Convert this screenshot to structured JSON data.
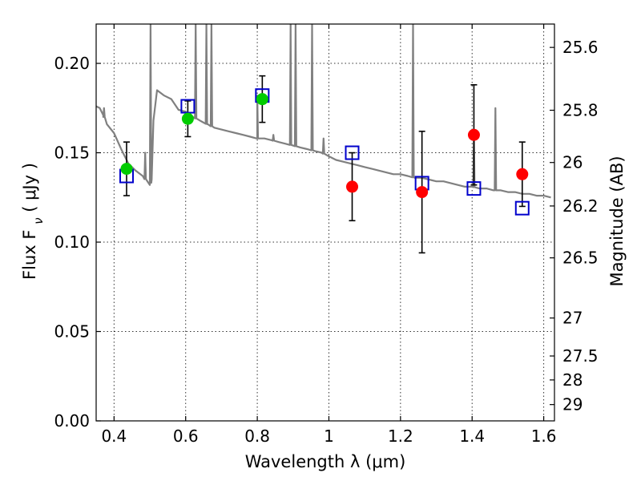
{
  "chart_data": {
    "type": "scatter",
    "xlabel": "Wavelength  λ (μm)",
    "ylabel": "Flux  F_ν  ( μJy )",
    "ylabel_right": "Magnitude (AB)",
    "xlim": [
      0.35,
      1.63
    ],
    "ylim": [
      0.0,
      0.222
    ],
    "grid": true,
    "x_ticks": [
      0.4,
      0.6,
      0.8,
      1.0,
      1.2,
      1.4,
      1.6
    ],
    "x_tick_labels": [
      "0.4",
      "0.6",
      "0.8",
      "1",
      "1.2",
      "1.4",
      "1.6"
    ],
    "y_ticks": [
      0.0,
      0.05,
      0.1,
      0.15,
      0.2
    ],
    "y_tick_labels": [
      "0.00",
      "0.05",
      "0.10",
      "0.15",
      "0.20"
    ],
    "right_ticks": [
      {
        "mag": 25.6,
        "label": "25.6"
      },
      {
        "mag": 25.8,
        "label": "25.8"
      },
      {
        "mag": 26.0,
        "label": "26"
      },
      {
        "mag": 26.2,
        "label": "26.2"
      },
      {
        "mag": 26.5,
        "label": "26.5"
      },
      {
        "mag": 27.0,
        "label": "27"
      },
      {
        "mag": 27.5,
        "label": "27.5"
      },
      {
        "mag": 28.0,
        "label": "28"
      },
      {
        "mag": 29.0,
        "label": "29"
      }
    ],
    "colors": {
      "model": "#808080",
      "optical": "#00cc00",
      "nir": "#ff0000",
      "model_box": "#0000cc",
      "error": "#000000"
    },
    "model_spectrum": {
      "x": [
        0.35,
        0.36,
        0.37,
        0.38,
        0.4,
        0.42,
        0.44,
        0.46,
        0.48,
        0.5,
        0.505,
        0.51,
        0.52,
        0.54,
        0.56,
        0.58,
        0.6,
        0.62,
        0.64,
        0.66,
        0.68,
        0.7,
        0.72,
        0.74,
        0.76,
        0.78,
        0.8,
        0.82,
        0.84,
        0.86,
        0.88,
        0.9,
        0.92,
        0.94,
        0.96,
        0.98,
        1.0,
        1.02,
        1.04,
        1.06,
        1.08,
        1.1,
        1.12,
        1.14,
        1.16,
        1.18,
        1.2,
        1.22,
        1.24,
        1.26,
        1.28,
        1.3,
        1.32,
        1.34,
        1.36,
        1.38,
        1.4,
        1.42,
        1.44,
        1.46,
        1.48,
        1.5,
        1.52,
        1.54,
        1.56,
        1.58,
        1.6,
        1.62
      ],
      "y": [
        0.176,
        0.175,
        0.171,
        0.166,
        0.161,
        0.152,
        0.144,
        0.14,
        0.137,
        0.132,
        0.135,
        0.168,
        0.185,
        0.182,
        0.18,
        0.174,
        0.173,
        0.17,
        0.168,
        0.166,
        0.164,
        0.163,
        0.162,
        0.161,
        0.16,
        0.159,
        0.158,
        0.158,
        0.157,
        0.156,
        0.155,
        0.154,
        0.153,
        0.152,
        0.151,
        0.15,
        0.148,
        0.146,
        0.145,
        0.144,
        0.143,
        0.142,
        0.141,
        0.14,
        0.139,
        0.138,
        0.138,
        0.137,
        0.136,
        0.136,
        0.135,
        0.134,
        0.134,
        0.133,
        0.132,
        0.131,
        0.131,
        0.13,
        0.13,
        0.129,
        0.129,
        0.128,
        0.128,
        0.127,
        0.127,
        0.126,
        0.126,
        0.125
      ],
      "emission_lines": [
        {
          "x": 0.372,
          "y": 0.175
        },
        {
          "x": 0.487,
          "y": 0.15
        },
        {
          "x": 0.502,
          "y": 0.222
        },
        {
          "x": 0.628,
          "y": 0.222
        },
        {
          "x": 0.658,
          "y": 0.222
        },
        {
          "x": 0.672,
          "y": 0.222
        },
        {
          "x": 0.8,
          "y": 0.182
        },
        {
          "x": 0.845,
          "y": 0.16
        },
        {
          "x": 0.893,
          "y": 0.222
        },
        {
          "x": 0.907,
          "y": 0.222
        },
        {
          "x": 0.953,
          "y": 0.222
        },
        {
          "x": 0.985,
          "y": 0.158
        },
        {
          "x": 1.235,
          "y": 0.222
        },
        {
          "x": 1.405,
          "y": 0.162
        },
        {
          "x": 1.465,
          "y": 0.175
        }
      ]
    },
    "series": [
      {
        "kind": "optical",
        "points": [
          {
            "x": 0.435,
            "y": 0.141,
            "yerr": 0.015
          },
          {
            "x": 0.606,
            "y": 0.169,
            "yerr": 0.01
          },
          {
            "x": 0.814,
            "y": 0.18,
            "yerr": 0.013
          }
        ]
      },
      {
        "kind": "nir",
        "points": [
          {
            "x": 1.065,
            "y": 0.131,
            "yerr": 0.019
          },
          {
            "x": 1.26,
            "y": 0.128,
            "yerr": 0.034
          },
          {
            "x": 1.405,
            "y": 0.16,
            "yerr": 0.028
          },
          {
            "x": 1.54,
            "y": 0.138,
            "yerr": 0.018
          }
        ]
      },
      {
        "kind": "model_box",
        "points": [
          {
            "x": 0.435,
            "y": 0.137
          },
          {
            "x": 0.606,
            "y": 0.176
          },
          {
            "x": 0.814,
            "y": 0.182
          },
          {
            "x": 1.065,
            "y": 0.15
          },
          {
            "x": 1.26,
            "y": 0.133
          },
          {
            "x": 1.405,
            "y": 0.13
          },
          {
            "x": 1.54,
            "y": 0.119
          }
        ]
      }
    ]
  }
}
